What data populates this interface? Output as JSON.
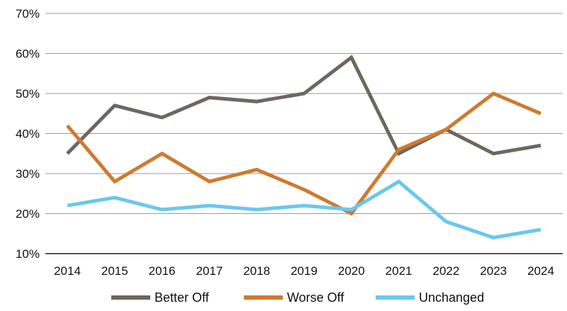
{
  "chart_data": {
    "type": "line",
    "title": "",
    "xlabel": "",
    "ylabel": "",
    "categories": [
      "2014",
      "2015",
      "2016",
      "2017",
      "2018",
      "2019",
      "2020",
      "2021",
      "2022",
      "2023",
      "2024"
    ],
    "ylim": [
      10,
      70
    ],
    "yticks": [
      10,
      20,
      30,
      40,
      50,
      60,
      70
    ],
    "ytick_labels": [
      "10%",
      "20%",
      "30%",
      "40%",
      "50%",
      "60%",
      "70%"
    ],
    "grid": true,
    "legend_position": "bottom",
    "series": [
      {
        "name": "Better Off",
        "color": "#6f665e",
        "values": [
          35,
          47,
          44,
          49,
          48,
          50,
          59,
          35,
          41,
          35,
          37
        ]
      },
      {
        "name": "Worse Off",
        "color": "#cf7a30",
        "values": [
          42,
          28,
          35,
          28,
          31,
          26,
          20,
          36,
          41,
          50,
          45
        ]
      },
      {
        "name": "Unchanged",
        "color": "#69c8ee",
        "values": [
          22,
          24,
          21,
          22,
          21,
          22,
          21,
          28,
          18,
          14,
          16
        ]
      }
    ]
  }
}
